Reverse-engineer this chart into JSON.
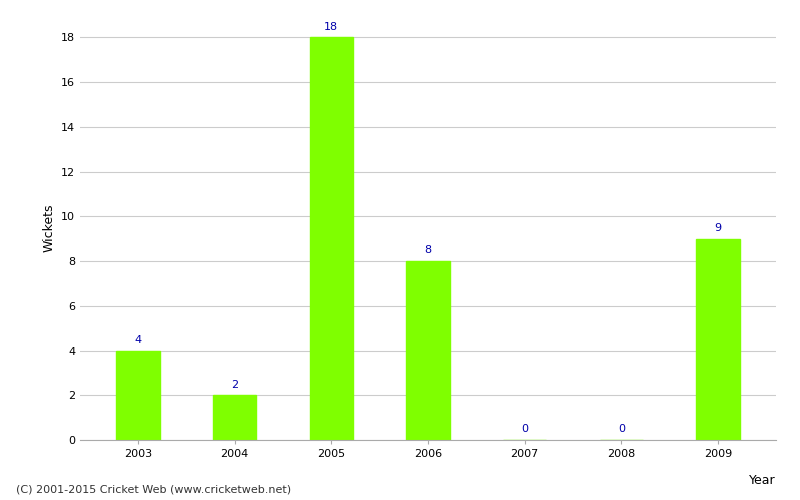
{
  "years": [
    "2003",
    "2004",
    "2005",
    "2006",
    "2007",
    "2008",
    "2009"
  ],
  "wickets": [
    4,
    2,
    18,
    8,
    0,
    0,
    9
  ],
  "bar_color": "#7FFF00",
  "bar_edge_color": "#7FFF00",
  "xlabel": "Year",
  "ylabel": "Wickets",
  "ylim": [
    0,
    19
  ],
  "yticks": [
    0,
    2,
    4,
    6,
    8,
    10,
    12,
    14,
    16,
    18
  ],
  "annotation_color": "#0000AA",
  "annotation_fontsize": 8,
  "grid_color": "#cccccc",
  "background_color": "#ffffff",
  "footer_text": "(C) 2001-2015 Cricket Web (www.cricketweb.net)",
  "footer_fontsize": 8,
  "footer_color": "#333333",
  "axis_label_fontsize": 9,
  "tick_fontsize": 8,
  "bar_width": 0.45
}
